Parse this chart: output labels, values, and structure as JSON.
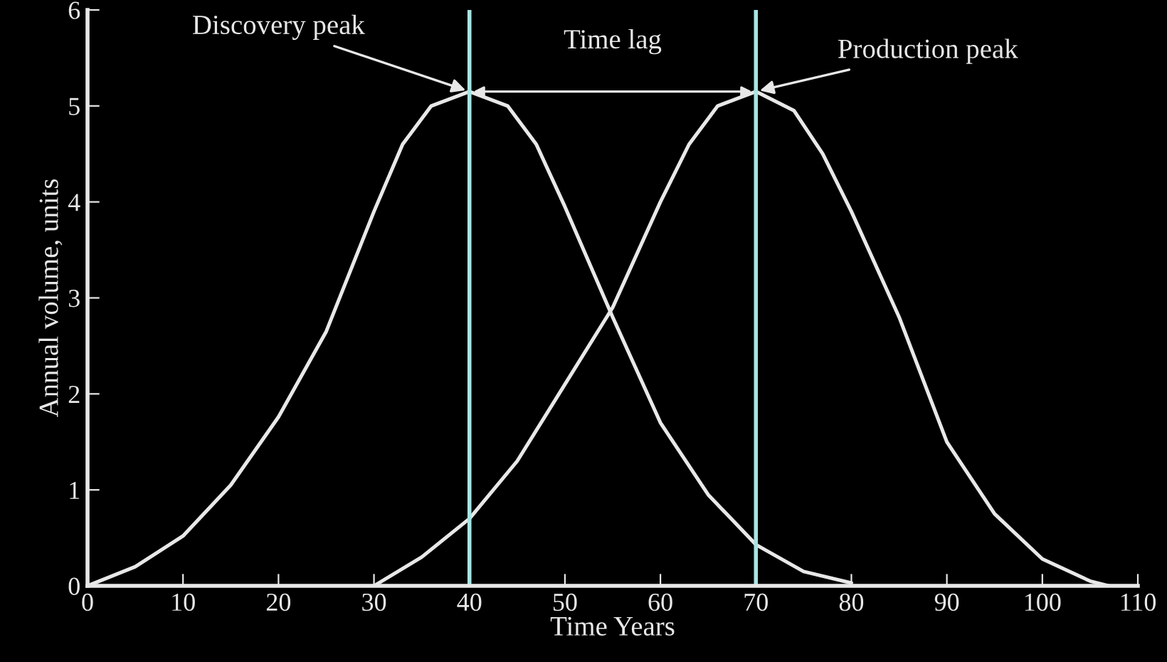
{
  "chart_data": {
    "type": "line",
    "xlabel": "Time Years",
    "ylabel": "Annual volume, units",
    "series": [
      {
        "color": "#e8e8e8",
        "x": [
          0,
          5,
          10,
          15,
          20,
          25,
          30,
          33,
          36,
          40,
          44,
          47,
          50,
          55,
          60,
          65,
          70,
          75,
          80
        ],
        "values": [
          0,
          0.2,
          0.52,
          1.05,
          1.76,
          2.65,
          3.9,
          4.6,
          5.0,
          5.15,
          5.0,
          4.6,
          3.95,
          2.8,
          1.7,
          0.95,
          0.43,
          0.15,
          0.03
        ]
      },
      {
        "color": "#e8e8e8",
        "x": [
          30,
          35,
          40,
          45,
          50,
          55,
          60,
          63,
          66,
          70,
          74,
          77,
          80,
          85,
          90,
          95,
          100,
          105,
          107
        ],
        "values": [
          0,
          0.3,
          0.7,
          1.3,
          2.1,
          2.9,
          4.0,
          4.6,
          5.0,
          5.15,
          4.95,
          4.5,
          3.9,
          2.8,
          1.5,
          0.75,
          0.28,
          0.05,
          0
        ]
      }
    ],
    "ref_lines": [
      {
        "axis": "x",
        "value": 40,
        "label": null,
        "color": "#a8e4e4"
      },
      {
        "axis": "x",
        "value": 70,
        "label": null,
        "color": "#a8e4e4"
      }
    ],
    "annotations": [
      {
        "text": "Discovery peak",
        "x": 40,
        "y": 5.15
      },
      "Time lag",
      {
        "text": "Production peak",
        "x": 70,
        "y": 5.15
      }
    ],
    "xlim": [
      0,
      110
    ],
    "xticks": [
      0,
      10,
      20,
      30,
      40,
      50,
      60,
      70,
      80,
      90,
      100,
      110
    ],
    "ylim": [
      0,
      6
    ],
    "yticks": [
      0,
      1,
      2,
      3,
      4,
      5,
      6
    ],
    "grid": false,
    "legend": false,
    "marker": "none",
    "line_style": "solid"
  }
}
